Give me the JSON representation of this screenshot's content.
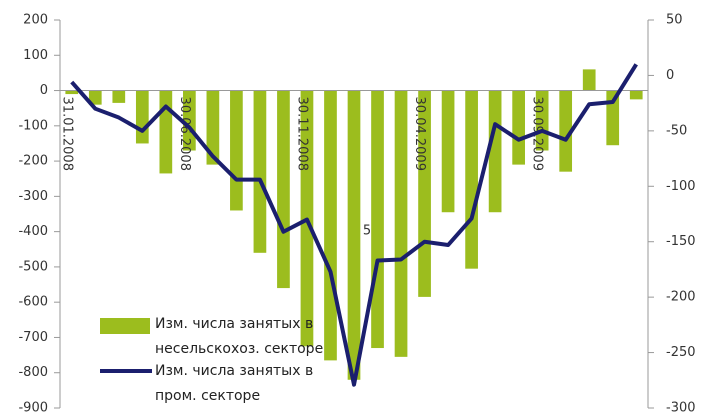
{
  "chart_data": {
    "type": "bar_line",
    "categories": [
      "31.01.2008",
      null,
      null,
      null,
      null,
      "30.06.2008",
      null,
      null,
      null,
      null,
      "30.11.2008",
      null,
      null,
      null,
      null,
      "30.04.2009",
      null,
      null,
      null,
      null,
      "30.09.2009",
      null,
      null,
      null,
      null
    ],
    "series": [
      {
        "name": "Изм. числа занятых в несельскохоз. секторе",
        "color": "#9cbd1e",
        "type": "bar",
        "values": [
          -10,
          -40,
          -35,
          -150,
          -235,
          -170,
          -210,
          -340,
          -460,
          -560,
          -725,
          -765,
          -820,
          -730,
          -755,
          -585,
          -345,
          -505,
          -345,
          -210,
          -170,
          -230,
          60,
          -155,
          -25
        ]
      },
      {
        "name": "Изм. числа занятых в пром. секторе",
        "color": "#1b1f6e",
        "type": "line",
        "axis": "y2",
        "values": [
          -6,
          -30,
          -38,
          -50,
          -28,
          -47,
          -73,
          -94,
          -94,
          -141,
          -130,
          -177,
          -279,
          -167,
          -166,
          -150,
          -153,
          -129,
          -44,
          -58,
          -50,
          -58,
          -26,
          -24,
          10
        ]
      }
    ],
    "annotations": [
      {
        "text": "5"
      }
    ],
    "ylim": [
      -900,
      200
    ],
    "yticks": [
      -900,
      -800,
      -700,
      -600,
      -500,
      -400,
      -300,
      -200,
      -100,
      0,
      100,
      200
    ],
    "y2lim": [
      -300,
      50
    ],
    "y2ticks": [
      -300,
      -250,
      -200,
      -150,
      -100,
      -50,
      0,
      50
    ],
    "legend": "lower-left",
    "grid": false
  }
}
